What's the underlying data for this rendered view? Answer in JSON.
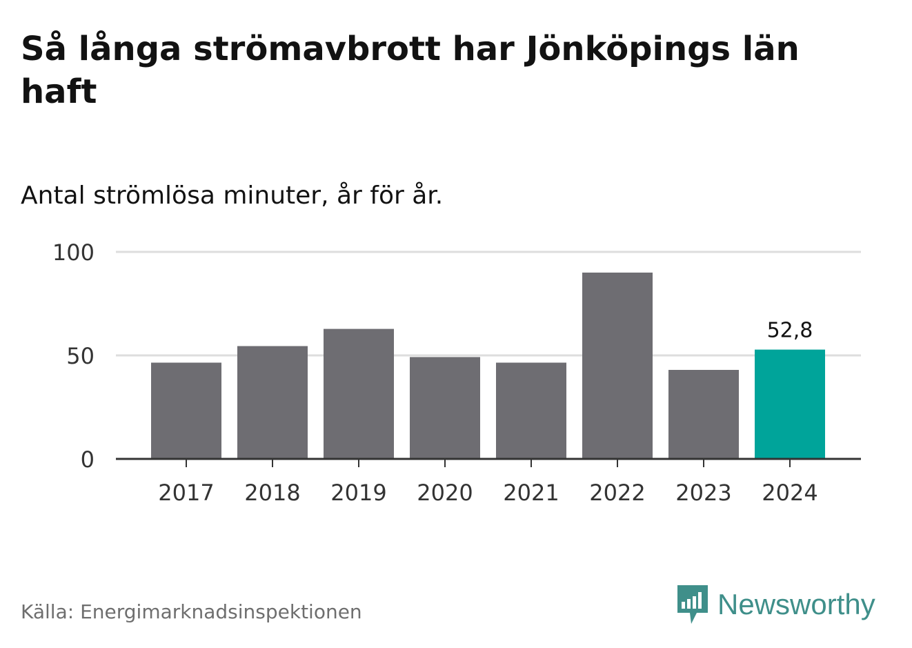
{
  "header": {
    "title": "Så långa strömavbrott har Jönköpings län haft",
    "subtitle": "Antal strömlösa minuter, år för år."
  },
  "footer": {
    "source": "Källa: Energimarknadsinspektionen",
    "brand": "Newsworthy"
  },
  "colors": {
    "bar": "#6e6d72",
    "highlight": "#00a49a",
    "grid": "#dddddd",
    "axis": "#333333",
    "brand": "#3f8f8a"
  },
  "chart_data": {
    "type": "bar",
    "title": "Så långa strömavbrott har Jönköpings län haft",
    "subtitle": "Antal strömlösa minuter, år för år.",
    "xlabel": "",
    "ylabel": "",
    "categories": [
      "2017",
      "2018",
      "2019",
      "2020",
      "2021",
      "2022",
      "2023",
      "2024"
    ],
    "values": [
      46.5,
      54.5,
      62.8,
      49.2,
      46.5,
      90.0,
      43.0,
      52.8
    ],
    "ylim": [
      0,
      100
    ],
    "yticks": [
      0,
      50,
      100
    ],
    "ytick_labels": [
      "0",
      "50",
      "100"
    ],
    "highlight_index": 7,
    "data_labels": [
      {
        "index": 7,
        "text": "52,8"
      }
    ],
    "grid": true
  }
}
